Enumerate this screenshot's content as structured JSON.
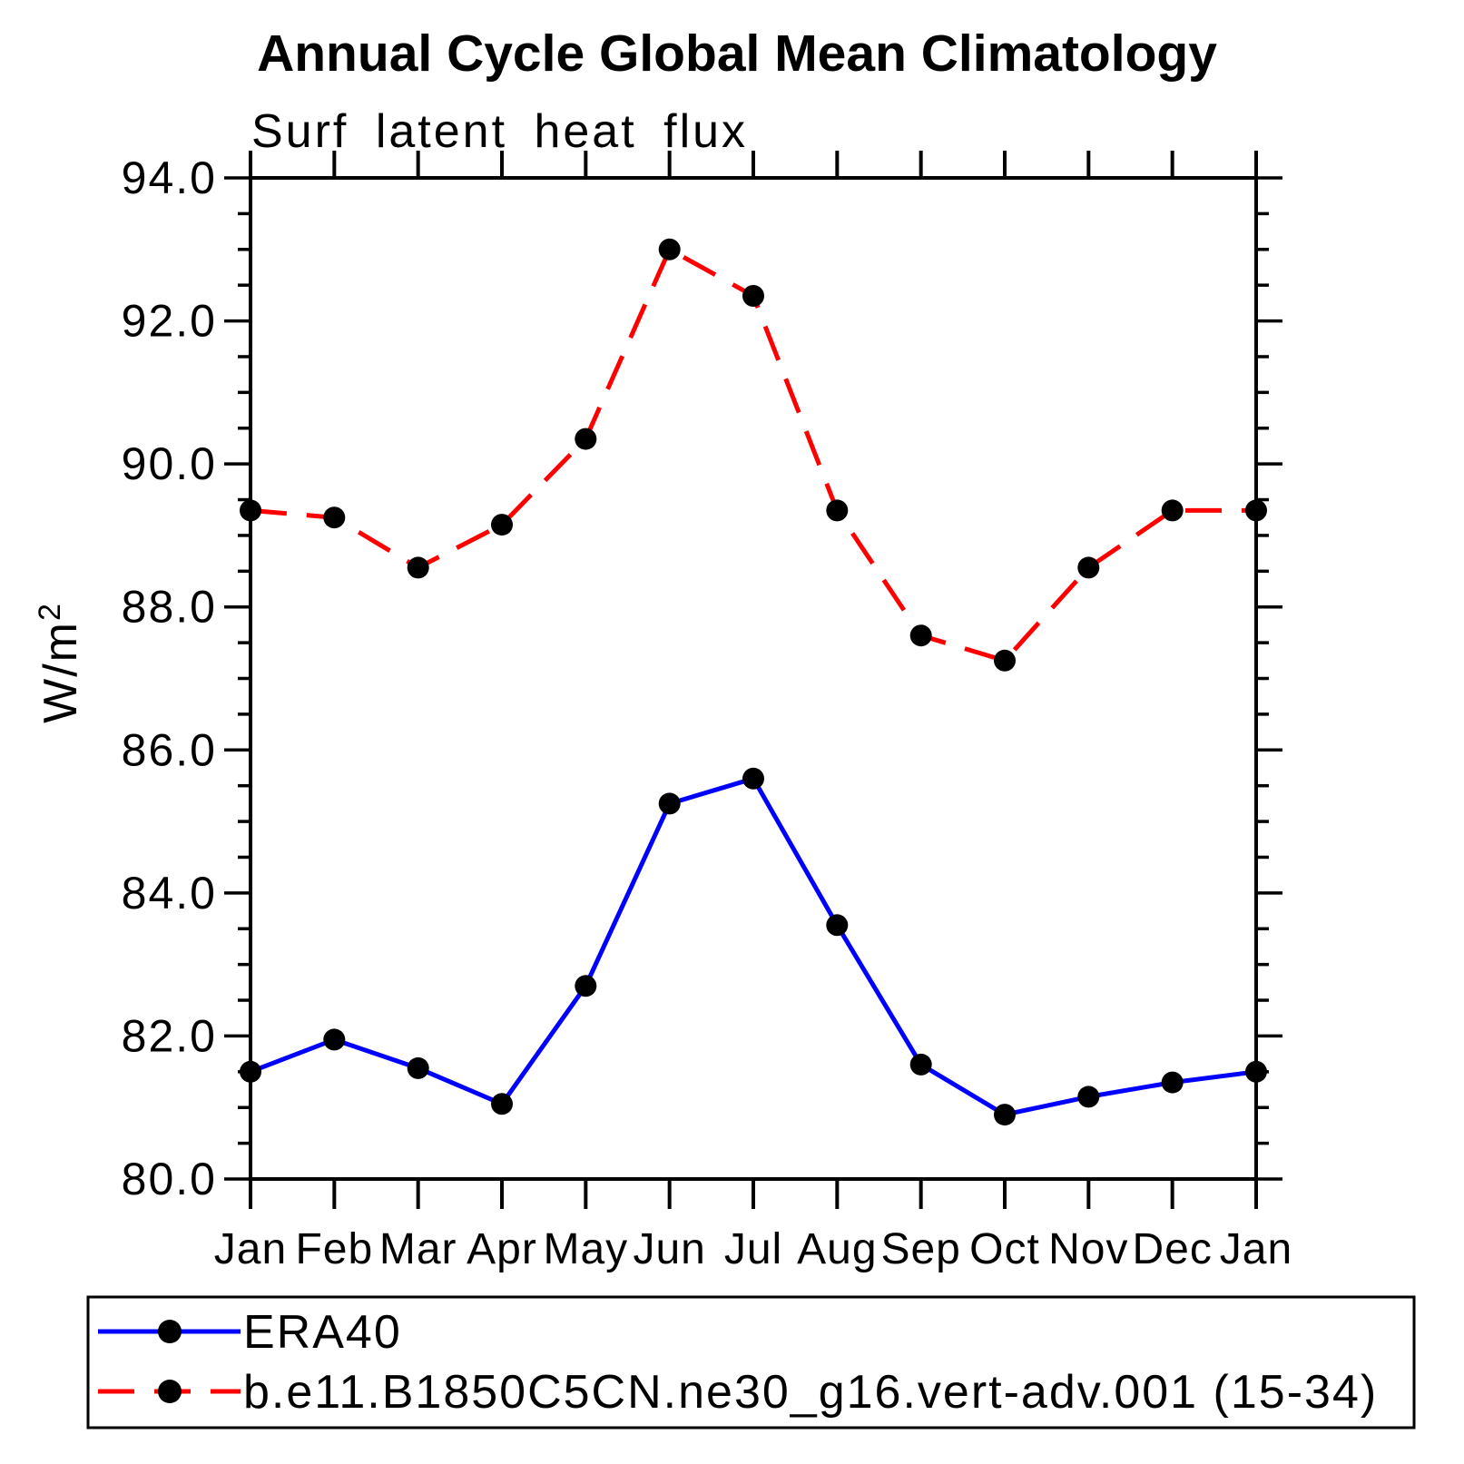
{
  "chart_data": {
    "type": "line",
    "title": "Annual Cycle Global Mean Climatology",
    "subtitle": "Surf latent heat flux",
    "ylabel": "W/m²",
    "xlabel": "",
    "categories": [
      "Jan",
      "Feb",
      "Mar",
      "Apr",
      "May",
      "Jun",
      "Jul",
      "Aug",
      "Sep",
      "Oct",
      "Nov",
      "Dec",
      "Jan"
    ],
    "ylim": [
      80.0,
      94.0
    ],
    "y_major_step": 2.0,
    "y_minor_step": 0.5,
    "y_tick_labels": [
      "80.0",
      "82.0",
      "84.0",
      "86.0",
      "88.0",
      "90.0",
      "92.0",
      "94.0"
    ],
    "grid": false,
    "legend_position": "bottom",
    "marker_color": "#000000",
    "axis_color": "#000000",
    "series": [
      {
        "name": "ERA40",
        "color": "#0000ff",
        "line_style": "solid",
        "marker": "circle",
        "values": [
          81.5,
          81.95,
          81.55,
          81.05,
          82.7,
          85.25,
          85.6,
          83.55,
          81.6,
          80.9,
          81.15,
          81.35,
          81.5
        ]
      },
      {
        "name": "b.e11.B1850C5CN.ne30_g16.vert-adv.001 (15-34)",
        "color": "#ff0000",
        "line_style": "dashed",
        "marker": "circle",
        "values": [
          89.35,
          89.25,
          88.55,
          89.15,
          90.35,
          93.0,
          92.35,
          89.35,
          87.6,
          87.25,
          88.55,
          89.35,
          89.35
        ]
      }
    ]
  }
}
